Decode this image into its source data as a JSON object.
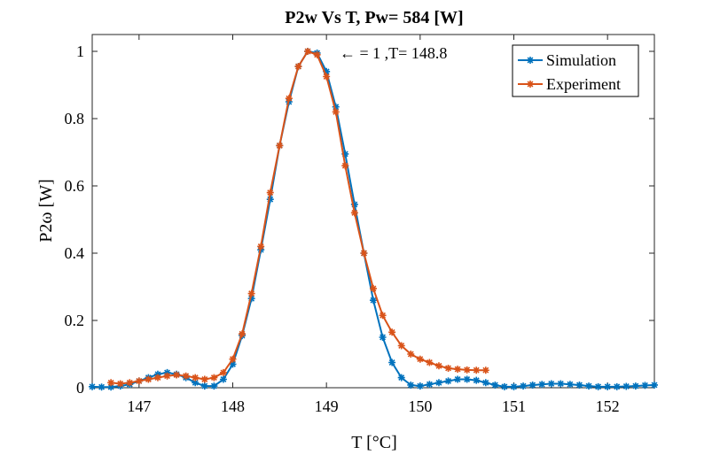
{
  "chart_data": {
    "type": "line",
    "title": "P2w Vs T, Pw= 584 [W]",
    "xlabel": "T [°C]",
    "ylabel": "P2ω [W]",
    "xlim": [
      146.5,
      152.5
    ],
    "ylim": [
      0,
      1.05
    ],
    "xticks": [
      147,
      148,
      149,
      150,
      151,
      152
    ],
    "yticks": [
      0,
      0.2,
      0.4,
      0.6,
      0.8,
      1
    ],
    "xtick_labels": [
      "147",
      "148",
      "149",
      "150",
      "151",
      "152"
    ],
    "ytick_labels": [
      "0",
      "0.2",
      "0.4",
      "0.6",
      "0.8",
      "1"
    ],
    "grid": false,
    "legend_position": "top-right",
    "annotation": {
      "text": "← = 1 ,T= 148.8",
      "x": 148.8,
      "y": 1
    },
    "series": [
      {
        "name": "Simulation",
        "color": "#0072BD",
        "marker": "asterisk",
        "x": [
          146.5,
          146.6,
          146.7,
          146.8,
          146.9,
          147.0,
          147.1,
          147.2,
          147.3,
          147.4,
          147.5,
          147.6,
          147.7,
          147.8,
          147.9,
          148.0,
          148.1,
          148.2,
          148.3,
          148.4,
          148.5,
          148.6,
          148.7,
          148.8,
          148.9,
          149.0,
          149.1,
          149.2,
          149.3,
          149.4,
          149.5,
          149.6,
          149.7,
          149.8,
          149.9,
          150.0,
          150.1,
          150.2,
          150.3,
          150.4,
          150.5,
          150.6,
          150.7,
          150.8,
          150.9,
          151.0,
          151.1,
          151.2,
          151.3,
          151.4,
          151.5,
          151.6,
          151.7,
          151.8,
          151.9,
          152.0,
          152.1,
          152.2,
          152.3,
          152.4,
          152.5
        ],
        "y": [
          0.003,
          0.002,
          0.002,
          0.005,
          0.01,
          0.02,
          0.03,
          0.04,
          0.045,
          0.04,
          0.03,
          0.015,
          0.005,
          0.005,
          0.025,
          0.07,
          0.155,
          0.265,
          0.41,
          0.56,
          0.72,
          0.85,
          0.955,
          1.0,
          0.995,
          0.94,
          0.835,
          0.695,
          0.545,
          0.4,
          0.26,
          0.15,
          0.075,
          0.03,
          0.008,
          0.005,
          0.01,
          0.015,
          0.02,
          0.025,
          0.025,
          0.022,
          0.015,
          0.008,
          0.003,
          0.003,
          0.005,
          0.008,
          0.01,
          0.012,
          0.012,
          0.01,
          0.008,
          0.005,
          0.003,
          0.003,
          0.003,
          0.004,
          0.005,
          0.007,
          0.008
        ]
      },
      {
        "name": "Experiment",
        "color": "#D95319",
        "marker": "asterisk",
        "x": [
          146.7,
          146.8,
          146.9,
          147.0,
          147.1,
          147.2,
          147.3,
          147.4,
          147.5,
          147.6,
          147.7,
          147.8,
          147.9,
          148.0,
          148.1,
          148.2,
          148.3,
          148.4,
          148.5,
          148.6,
          148.7,
          148.8,
          148.9,
          149.0,
          149.1,
          149.2,
          149.3,
          149.4,
          149.5,
          149.6,
          149.7,
          149.8,
          149.9,
          150.0,
          150.1,
          150.2,
          150.3,
          150.4,
          150.5,
          150.6,
          150.7
        ],
        "y": [
          0.015,
          0.012,
          0.015,
          0.02,
          0.025,
          0.03,
          0.035,
          0.038,
          0.035,
          0.03,
          0.025,
          0.03,
          0.045,
          0.085,
          0.16,
          0.28,
          0.42,
          0.58,
          0.72,
          0.86,
          0.955,
          1.0,
          0.99,
          0.925,
          0.82,
          0.66,
          0.52,
          0.4,
          0.295,
          0.215,
          0.165,
          0.125,
          0.1,
          0.085,
          0.075,
          0.065,
          0.058,
          0.055,
          0.053,
          0.052,
          0.052
        ]
      }
    ]
  }
}
